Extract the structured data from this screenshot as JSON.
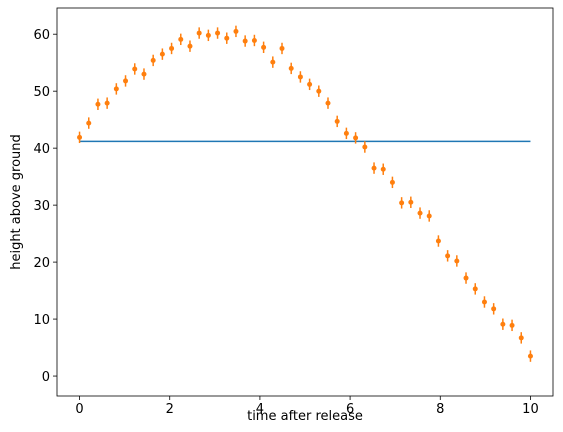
{
  "chart_data": {
    "type": "line",
    "xlabel": "time after release",
    "ylabel": "height above ground",
    "xlim": [
      -0.5,
      10.5
    ],
    "ylim": [
      -3.5,
      64.6
    ],
    "xticks": [
      0,
      2,
      4,
      6,
      8,
      10
    ],
    "yticks": [
      0,
      10,
      20,
      30,
      40,
      50,
      60
    ],
    "series": [
      {
        "type": "line",
        "color": "#1f77b4",
        "x": [
          0,
          10
        ],
        "values": [
          41.2,
          41.2
        ]
      },
      {
        "type": "errorbar",
        "color": "#ff7f0e",
        "yerr": 1,
        "x": [
          0,
          0.204,
          0.408,
          0.612,
          0.816,
          1.02,
          1.224,
          1.429,
          1.633,
          1.837,
          2.041,
          2.245,
          2.449,
          2.653,
          2.857,
          3.061,
          3.265,
          3.469,
          3.673,
          3.878,
          4.082,
          4.286,
          4.49,
          4.694,
          4.898,
          5.102,
          5.306,
          5.51,
          5.714,
          5.918,
          6.122,
          6.327,
          6.531,
          6.735,
          6.939,
          7.143,
          7.347,
          7.551,
          7.755,
          7.959,
          8.163,
          8.367,
          8.571,
          8.776,
          8.98,
          9.184,
          9.388,
          9.592,
          9.796,
          10
        ],
        "values": [
          41.9,
          44.4,
          47.7,
          47.9,
          50.4,
          51.8,
          53.9,
          53.0,
          55.4,
          56.5,
          57.5,
          59.1,
          57.9,
          60.2,
          59.8,
          60.2,
          59.3,
          60.5,
          58.8,
          58.9,
          57.7,
          55.1,
          57.5,
          54.0,
          52.5,
          51.2,
          50.0,
          47.9,
          44.7,
          42.6,
          41.8,
          40.2,
          36.5,
          36.3,
          34.0,
          30.4,
          30.5,
          28.6,
          28.1,
          23.7,
          21.1,
          20.2,
          17.2,
          15.3,
          13.0,
          11.8,
          9.1,
          8.9,
          6.7,
          3.5
        ]
      }
    ]
  }
}
